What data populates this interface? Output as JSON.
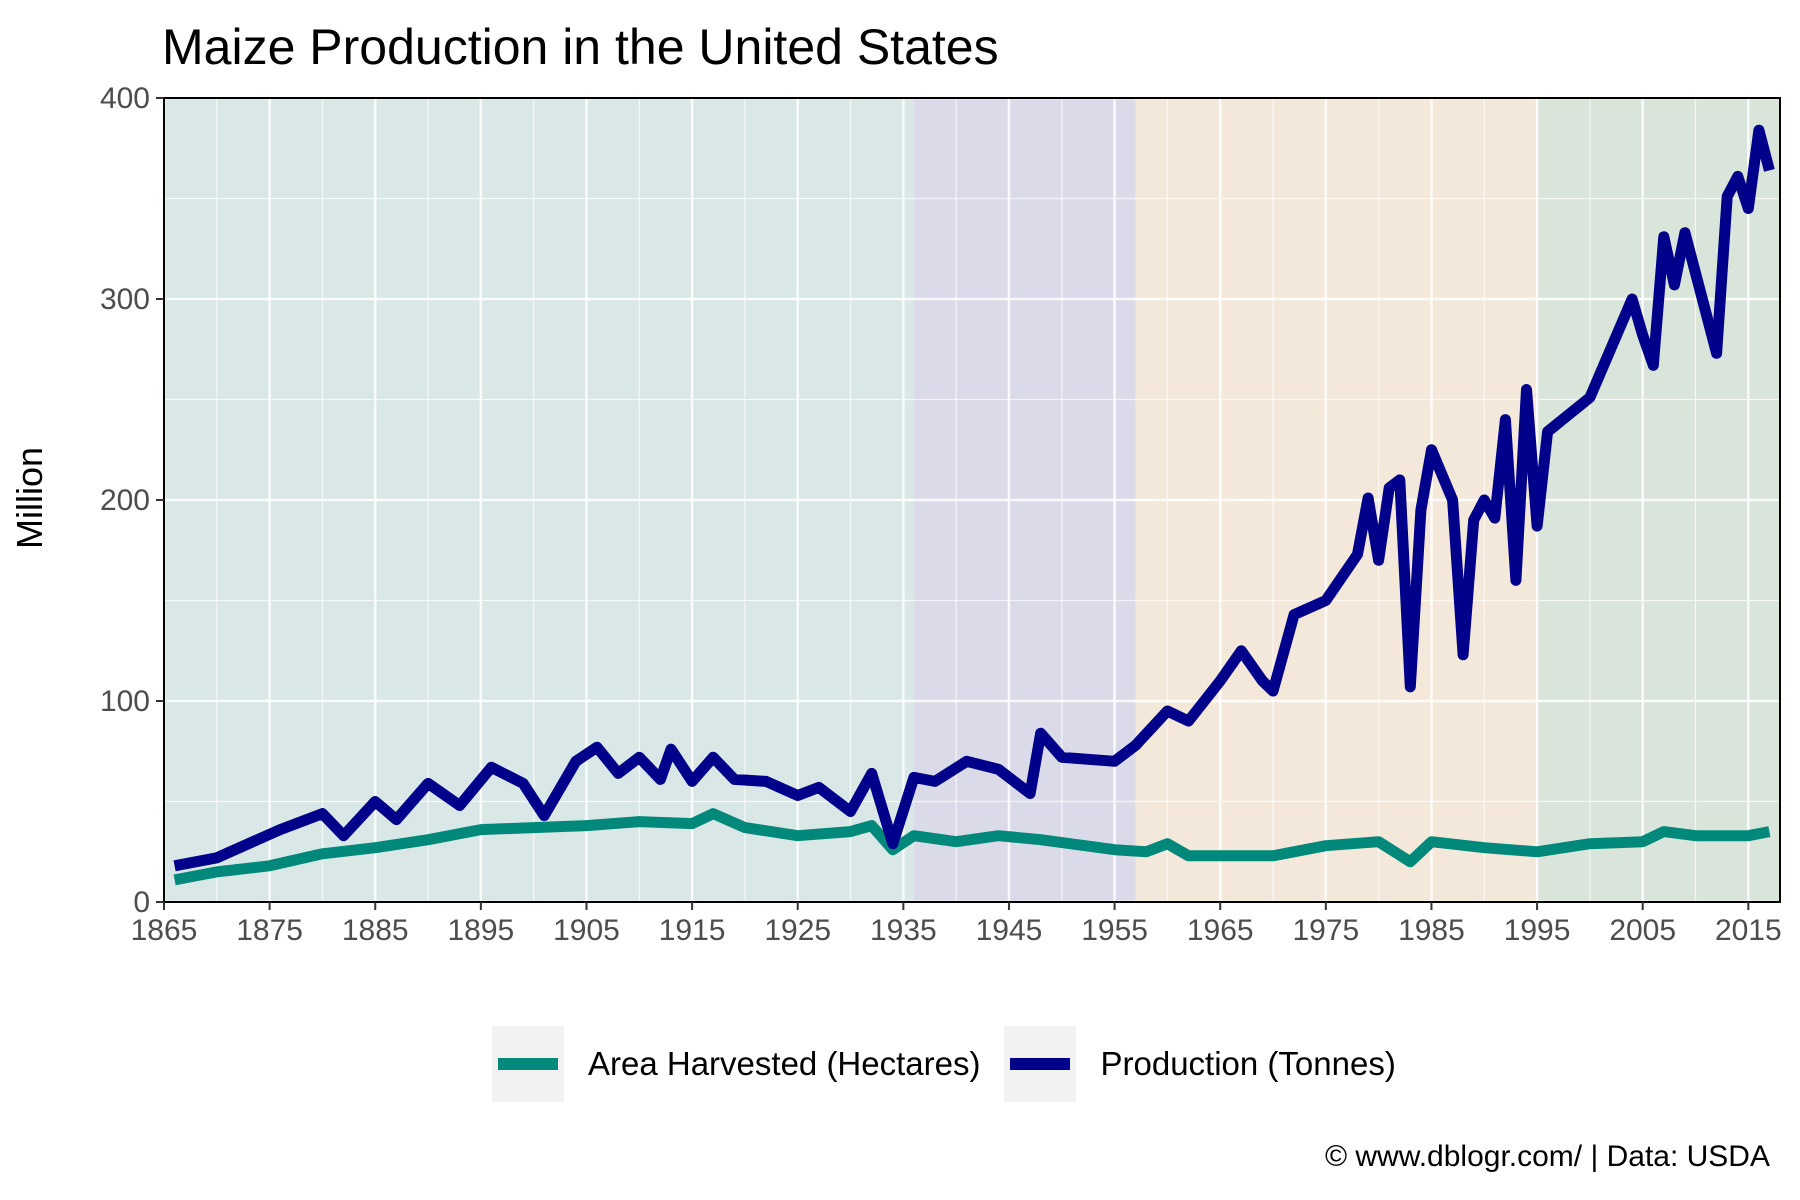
{
  "chart_data": {
    "type": "line",
    "title": "Maize Production in the United States",
    "xlabel": "",
    "ylabel": "Million",
    "xlim": [
      1865,
      2018
    ],
    "ylim": [
      0,
      400
    ],
    "x_ticks": [
      "1865",
      "1875",
      "1885",
      "1895",
      "1905",
      "1915",
      "1925",
      "1935",
      "1945",
      "1955",
      "1965",
      "1975",
      "1985",
      "1995",
      "2005",
      "2015"
    ],
    "y_ticks": [
      "0",
      "100",
      "200",
      "300",
      "400"
    ],
    "grid": true,
    "legend_position": "bottom",
    "background_bands": [
      {
        "from": 1865,
        "to": 1936,
        "color": "#d9e7e6"
      },
      {
        "from": 1936,
        "to": 1957,
        "color": "#dadae9"
      },
      {
        "from": 1957,
        "to": 1995,
        "color": "#f3e8da"
      },
      {
        "from": 1995,
        "to": 2018,
        "color": "#d9e4da"
      }
    ],
    "series": [
      {
        "name": "Area Harvested (Hectares)",
        "color": "#00897b",
        "x": [
          1866,
          1870,
          1875,
          1880,
          1885,
          1890,
          1895,
          1900,
          1905,
          1910,
          1915,
          1917,
          1920,
          1925,
          1930,
          1932,
          1934,
          1936,
          1940,
          1944,
          1948,
          1955,
          1958,
          1960,
          1962,
          1965,
          1970,
          1975,
          1980,
          1983,
          1985,
          1990,
          1995,
          2000,
          2005,
          2007,
          2010,
          2015,
          2017
        ],
        "values": [
          11,
          15,
          18,
          24,
          27,
          31,
          36,
          37,
          38,
          40,
          39,
          44,
          37,
          33,
          35,
          38,
          26,
          33,
          30,
          33,
          31,
          26,
          25,
          29,
          23,
          23,
          23,
          28,
          30,
          20,
          30,
          27,
          25,
          29,
          30,
          35,
          33,
          33,
          35
        ]
      },
      {
        "name": "Production (Tonnes)",
        "color": "#00008b",
        "x": [
          1866,
          1870,
          1873,
          1876,
          1880,
          1882,
          1885,
          1887,
          1890,
          1893,
          1896,
          1899,
          1901,
          1904,
          1906,
          1908,
          1910,
          1912,
          1913,
          1915,
          1917,
          1919,
          1922,
          1925,
          1927,
          1930,
          1932,
          1934,
          1936,
          1938,
          1941,
          1944,
          1947,
          1948,
          1950,
          1955,
          1957,
          1960,
          1962,
          1965,
          1967,
          1969,
          1970,
          1972,
          1975,
          1978,
          1979,
          1980,
          1981,
          1982,
          1983,
          1984,
          1985,
          1987,
          1988,
          1989,
          1990,
          1991,
          1992,
          1993,
          1994,
          1995,
          1996,
          2000,
          2004,
          2005,
          2006,
          2007,
          2008,
          2009,
          2012,
          2013,
          2014,
          2015,
          2016,
          2017
        ],
        "values": [
          18,
          22,
          29,
          36,
          44,
          33,
          50,
          41,
          59,
          48,
          67,
          59,
          43,
          70,
          77,
          64,
          72,
          61,
          76,
          60,
          72,
          61,
          60,
          53,
          57,
          45,
          64,
          29,
          62,
          60,
          70,
          66,
          54,
          84,
          72,
          70,
          78,
          95,
          90,
          110,
          125,
          110,
          105,
          143,
          150,
          173,
          201,
          170,
          206,
          210,
          107,
          195,
          225,
          200,
          123,
          190,
          200,
          191,
          240,
          160,
          255,
          187,
          234,
          251,
          300,
          282,
          267,
          331,
          307,
          333,
          273,
          351,
          361,
          345,
          384,
          364
        ]
      }
    ]
  },
  "legend": {
    "items": [
      {
        "label": "Area Harvested (Hectares)",
        "color": "#00897b"
      },
      {
        "label": "Production (Tonnes)",
        "color": "#00008b"
      }
    ]
  },
  "caption": "© www.dblogr.com/  |  Data: USDA"
}
